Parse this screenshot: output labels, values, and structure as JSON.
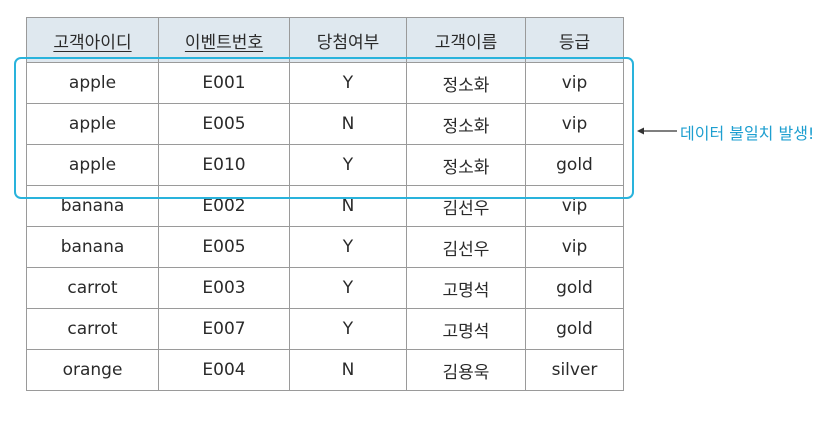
{
  "table": {
    "headers": [
      {
        "text": "고객아이디",
        "underline": true
      },
      {
        "text": "이벤트번호",
        "underline": true
      },
      {
        "text": "당첨여부",
        "underline": false
      },
      {
        "text": "고객이름",
        "underline": false
      },
      {
        "text": "등급",
        "underline": false
      }
    ],
    "rows": [
      [
        "apple",
        "E001",
        "Y",
        "정소화",
        "vip"
      ],
      [
        "apple",
        "E005",
        "N",
        "정소화",
        "vip"
      ],
      [
        "apple",
        "E010",
        "Y",
        "정소화",
        "gold"
      ],
      [
        "banana",
        "E002",
        "N",
        "김선우",
        "vip"
      ],
      [
        "banana",
        "E005",
        "Y",
        "김선우",
        "vip"
      ],
      [
        "carrot",
        "E003",
        "Y",
        "고명석",
        "gold"
      ],
      [
        "carrot",
        "E007",
        "Y",
        "고명석",
        "gold"
      ],
      [
        "orange",
        "E004",
        "N",
        "김용욱",
        "silver"
      ]
    ]
  },
  "annotation": {
    "text": "데이터 불일치 발생!",
    "color": "#1e9fd0",
    "highlight_color": "#29b3dc",
    "highlighted_rows": [
      1,
      2,
      3
    ]
  },
  "colors": {
    "header_bg": "#dfe8ef",
    "border": "#9a9a9a"
  }
}
